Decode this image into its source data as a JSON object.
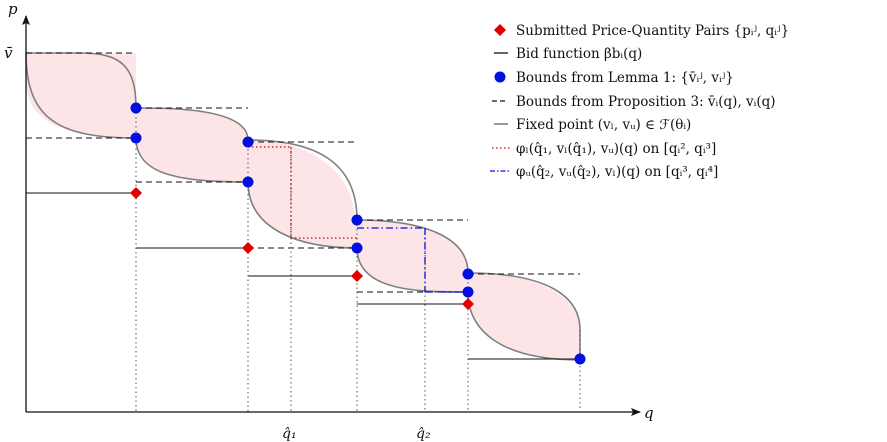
{
  "axes": {
    "y_label": "p",
    "x_label": "q",
    "v_bar_label": "v̄",
    "q1_label": "q̂₁",
    "q2_label": "q̂₂"
  },
  "legend": [
    {
      "key": "submitted",
      "text": "Submitted Price-Quantity Pairs {pᵢʲ, qᵢʲ}",
      "color": "#e00000",
      "symbol": "diamond"
    },
    {
      "key": "bid",
      "text": "Bid function βbᵢ(q)",
      "color": "#111111",
      "symbol": "solid-line"
    },
    {
      "key": "bounds_lemma",
      "text": "Bounds from Lemma 1: {v̄ᵢʲ, vᵢʲ}",
      "color": "#0010e0",
      "symbol": "circle"
    },
    {
      "key": "bounds_prop",
      "text": "Bounds from Proposition 3: v̄ᵢ(q), vᵢ(q)",
      "color": "#111111",
      "symbol": "dashed-line"
    },
    {
      "key": "fixed_point",
      "text": "Fixed point (vₗ, vᵤ) ∈ ℱ(θᵢ)",
      "color": "#808080",
      "symbol": "solid-line"
    },
    {
      "key": "phi_l",
      "text": "φₗ(q̂₁, vₗ(q̂₁), vᵤ)(q) on [qᵢ², qᵢ³]",
      "color": "#e00000",
      "symbol": "dotted-line"
    },
    {
      "key": "phi_u",
      "text": "φᵤ(q̂₂, vᵤ(q̂₂), vₗ)(q) on [qᵢ³, qᵢ⁴]",
      "color": "#0010e0",
      "symbol": "dashdot-line"
    }
  ],
  "colors": {
    "fill": "#fde4e6",
    "curve": "#808080",
    "red": "#e00000",
    "blue": "#0010e0",
    "black": "#111111"
  }
}
